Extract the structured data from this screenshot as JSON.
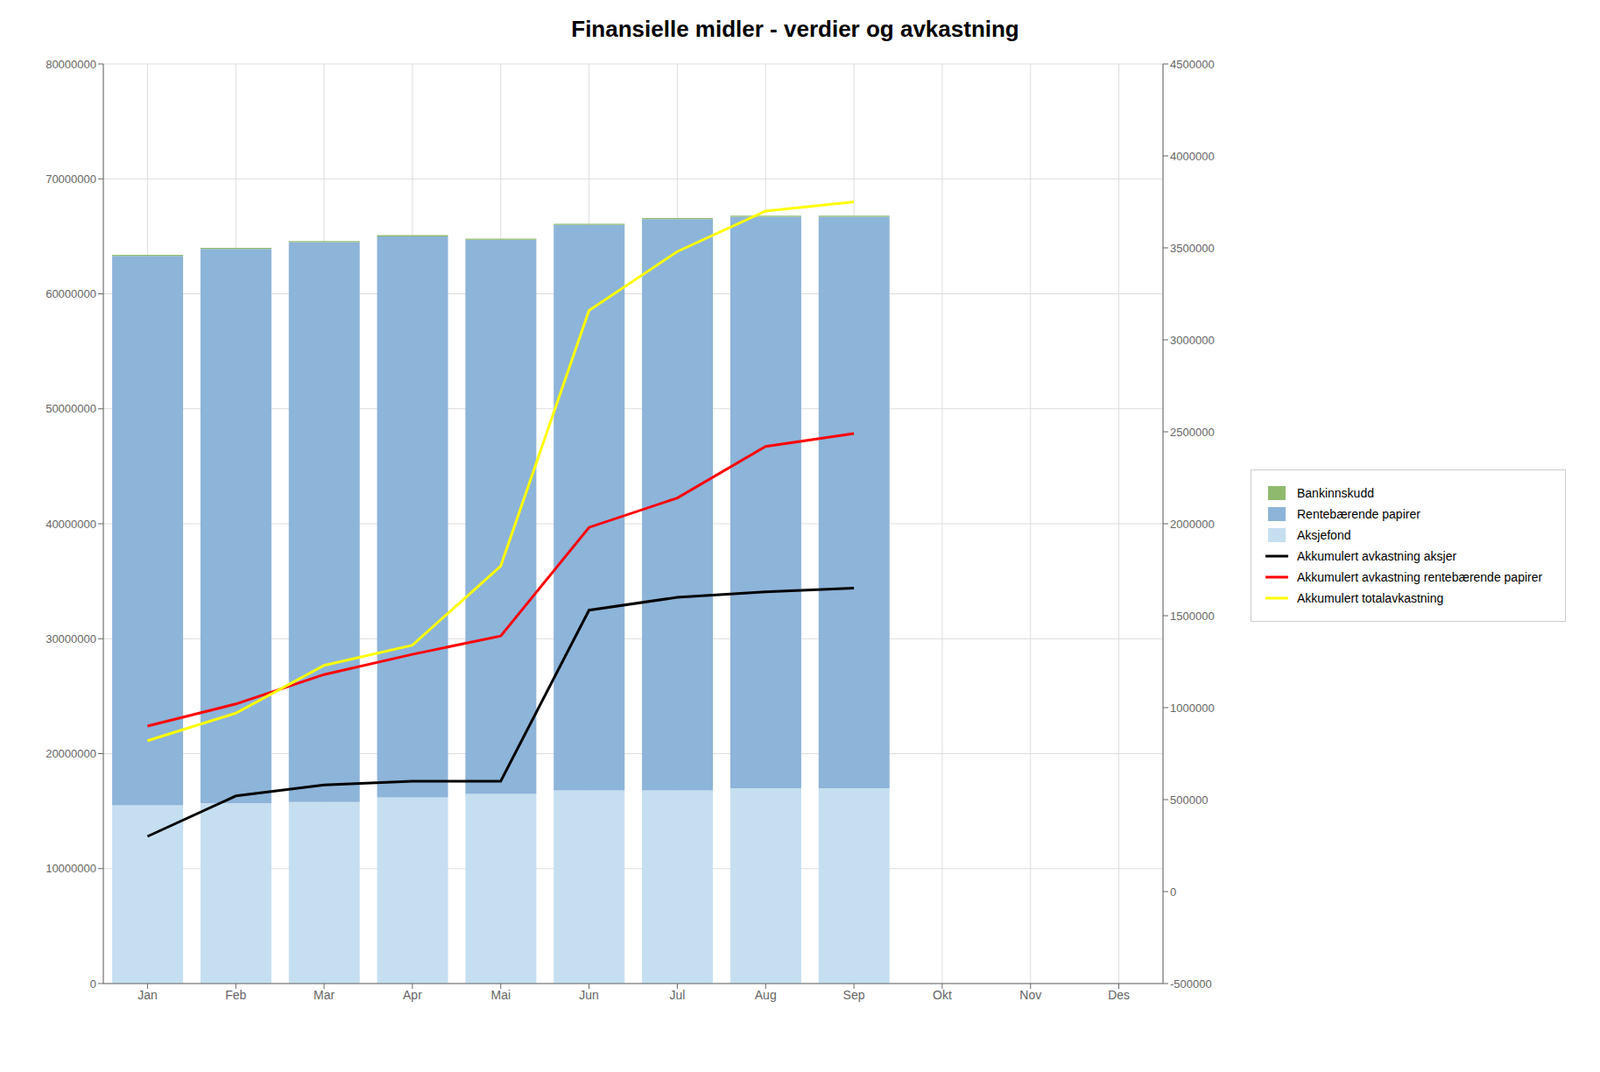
{
  "chart_data": {
    "type": "bar",
    "title": "Finansielle midler - verdier og avkastning",
    "categories": [
      "Jan",
      "Feb",
      "Mar",
      "Apr",
      "Mai",
      "Jun",
      "Jul",
      "Aug",
      "Sep",
      "Okt",
      "Nov",
      "Des"
    ],
    "stacked": true,
    "grid": true,
    "legend": "right",
    "ylim": [
      0,
      80000000
    ],
    "yticks": [
      0,
      10000000,
      20000000,
      30000000,
      40000000,
      50000000,
      60000000,
      70000000,
      80000000
    ],
    "y2lim": [
      -500000,
      4500000
    ],
    "y2ticks": [
      -500000,
      0,
      500000,
      1000000,
      1500000,
      2000000,
      2500000,
      3000000,
      3500000,
      4000000,
      4500000
    ],
    "series": [
      {
        "name": "Aksjefond",
        "type": "bar",
        "color": "#c5dff0",
        "values": [
          15500000,
          15700000,
          15800000,
          16200000,
          16500000,
          16800000,
          16800000,
          17000000,
          17000000,
          null,
          null,
          null
        ]
      },
      {
        "name": "Rentebærende papirer",
        "type": "bar",
        "color": "#8db4d9",
        "values": [
          47800000,
          48200000,
          48700000,
          48800000,
          48200000,
          49200000,
          49700000,
          49700000,
          49700000,
          null,
          null,
          null
        ]
      },
      {
        "name": "Bankinnskudd",
        "type": "bar",
        "color": "#8fba6e",
        "values": [
          100000,
          100000,
          100000,
          100000,
          100000,
          100000,
          100000,
          100000,
          100000,
          null,
          null,
          null
        ]
      },
      {
        "name": "Akkumulert avkastning aksjer",
        "type": "line",
        "axis": "y2",
        "color": "#000000",
        "values": [
          300000,
          520000,
          580000,
          600000,
          600000,
          1530000,
          1600000,
          1630000,
          1650000,
          null,
          null,
          null
        ]
      },
      {
        "name": "Akkumulert avkastning rentebærende papirer",
        "type": "line",
        "axis": "y2",
        "color": "#ff0000",
        "values": [
          900000,
          1020000,
          1180000,
          1290000,
          1390000,
          1980000,
          2140000,
          2420000,
          2490000,
          null,
          null,
          null
        ]
      },
      {
        "name": "Akkumulert totalavkastning",
        "type": "line",
        "axis": "y2",
        "color": "#ffff00",
        "values": [
          820000,
          970000,
          1230000,
          1340000,
          1770000,
          3160000,
          3480000,
          3700000,
          3750000,
          null,
          null,
          null
        ]
      }
    ]
  }
}
